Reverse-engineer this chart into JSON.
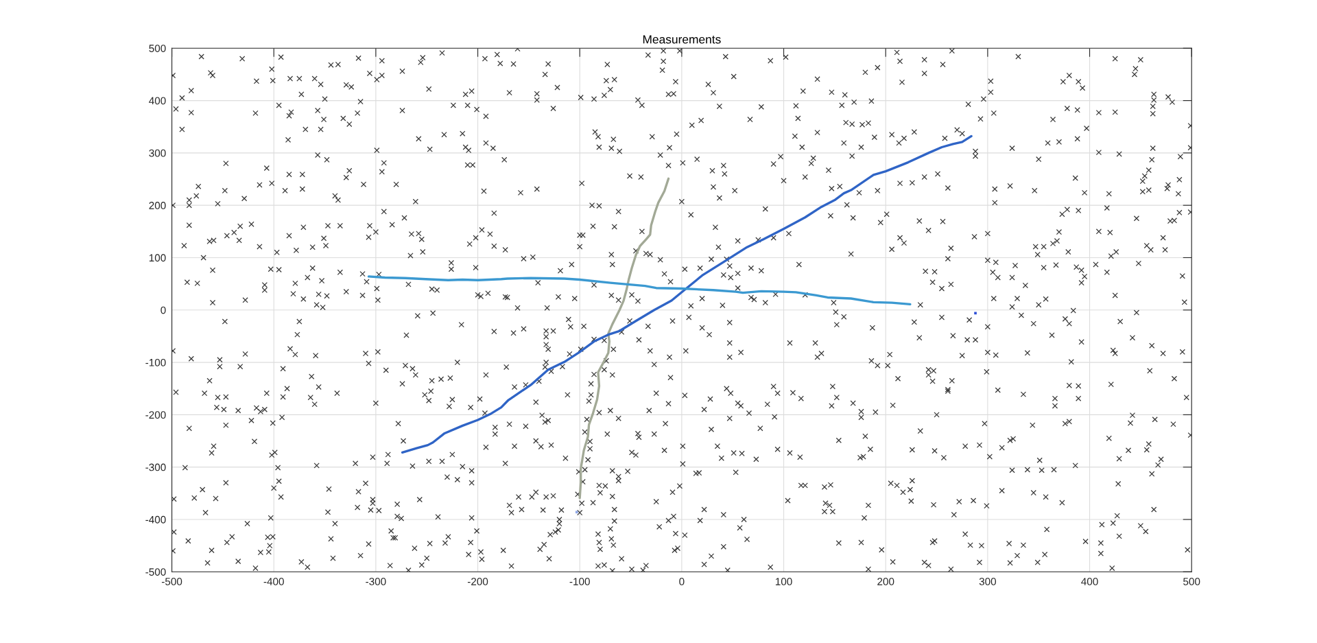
{
  "chart_data": {
    "type": "scatter",
    "title": "Measurements",
    "xlim": [
      -500,
      500
    ],
    "ylim": [
      -500,
      500
    ],
    "xticks": [
      -500,
      -400,
      -300,
      -200,
      -100,
      0,
      100,
      200,
      300,
      400,
      500
    ],
    "yticks": [
      -500,
      -400,
      -300,
      -200,
      -100,
      0,
      100,
      200,
      300,
      400,
      500
    ],
    "grid": true,
    "series": [
      {
        "color": "#383838",
        "marker": "cross",
        "x": [
          -499,
          -471,
          -431,
          -393,
          -402,
          -401,
          -462,
          -460,
          -490,
          -481,
          -496,
          -481,
          -490,
          -417,
          -418,
          -384,
          -375,
          -360,
          -354,
          -373,
          -344,
          -337,
          -317,
          -306,
          -299,
          -294,
          -294,
          -350,
          -385,
          -383,
          -395,
          -357,
          -351,
          -369,
          -354,
          -332,
          -326,
          -318,
          -315,
          -329,
          -324,
          -386,
          -274,
          -256,
          -254,
          -235,
          -248,
          -274,
          -258,
          -247,
          -233,
          -224,
          -212,
          -206,
          -210,
          -215,
          -212,
          -209,
          -210,
          -205,
          -201,
          -192,
          -193,
          -181,
          -178,
          -192,
          -185,
          -174,
          -299,
          -292,
          -294,
          -280,
          -329,
          -326,
          -312,
          -340,
          -337,
          -385,
          -372,
          -372,
          -389,
          -402,
          -407,
          -414,
          -357,
          -348,
          -447,
          -448,
          -474,
          -476,
          -483,
          -483,
          -499,
          -455,
          -429,
          -483,
          -488,
          -463,
          -459,
          -469,
          -446,
          -439,
          -433,
          -434,
          -422,
          -414,
          -485,
          -475,
          -460,
          -460,
          -428,
          -409,
          -409,
          -403,
          -395,
          -397,
          -385,
          -378,
          -371,
          -362,
          -351,
          -349,
          -347,
          -335,
          -379,
          -381,
          -371,
          -367,
          -362,
          -353,
          -356,
          -348,
          -358,
          -352,
          -335,
          -329,
          -313,
          -313,
          -309,
          -306,
          -307,
          -300,
          -292,
          -284,
          -272,
          -261,
          -265,
          -258,
          -255,
          -254,
          -266,
          -299,
          -298,
          -297,
          -245,
          -240,
          -226,
          -226,
          -268,
          -208,
          -202,
          -196,
          -188,
          -184,
          -194,
          -184,
          -202,
          -200,
          -197,
          -190,
          -173,
          -173,
          -161,
          -165,
          -131,
          -134,
          -122,
          -169,
          -142,
          -142,
          -126,
          -99,
          -86,
          -76,
          -70,
          -74,
          -66,
          -73,
          -33,
          -18,
          -18,
          -19,
          -2,
          -6,
          -13,
          -8,
          -43,
          -39,
          43,
          51,
          26,
          31,
          37,
          78,
          87,
          102,
          67,
          10,
          19,
          -5,
          -29,
          -12,
          -21,
          -13,
          1,
          15,
          30,
          41,
          42,
          31,
          52,
          37,
          0,
          9,
          33,
          82,
          90,
          97,
          100,
          121,
          127,
          129,
          144,
          112,
          114,
          111,
          118,
          133,
          133,
          119,
          147,
          160,
          157,
          161,
          159,
          147,
          155,
          162,
          146,
          105,
          75,
          90,
          55,
          36,
          29,
          44,
          47,
          68,
          78,
          115,
          166,
          3,
          18,
          41,
          55,
          48,
          -17,
          -21,
          -69,
          -68,
          -108,
          -119,
          -155,
          -146,
          -100,
          -100,
          -97,
          -87,
          -66,
          -62,
          -88,
          -81,
          -98,
          -51,
          -40,
          -142,
          -158,
          -81,
          -69,
          -61,
          -67,
          -85,
          -82,
          -39,
          -45,
          -31,
          -35,
          -161,
          -132,
          -121,
          -105,
          -69,
          -62,
          -43,
          -49,
          9,
          20,
          40,
          71,
          82,
          68,
          55,
          149,
          121,
          92,
          -11,
          -86,
          -141,
          -171,
          211,
          214,
          238,
          265,
          256,
          238,
          216,
          192,
          180,
          169,
          186,
          167,
          177,
          183,
          189,
          176,
          167,
          206,
          213,
          218,
          228,
          258,
          270,
          275,
          281,
          296,
          303,
          303,
          306,
          293,
          288,
          288,
          330,
          374,
          380,
          389,
          393,
          378,
          388,
          364,
          397,
          359,
          370,
          388,
          324,
          350,
          409,
          425,
          425,
          450,
          445,
          444,
          463,
          463,
          462,
          462,
          477,
          481,
          499,
          499,
          462,
          409,
          429,
          489,
          461,
          458,
          454,
          452,
          458,
          452,
          477,
          476,
          488,
          487,
          419,
          395,
          386,
          346,
          322,
          307,
          307,
          214,
          226,
          238,
          251,
          261,
          192,
          174,
          417,
          378,
          373,
          389,
          370,
          364,
          368,
          347,
          355,
          349,
          379,
          409,
          420,
          446,
          479,
          483,
          488,
          499,
          472,
          456,
          460,
          474,
          426,
          421,
          406,
          417,
          448,
          491,
          493,
          425,
          392,
          387,
          392,
          395,
          367,
          355,
          337,
          327,
          324,
          310,
          308,
          300,
          305,
          306,
          329,
          324,
          350,
          357,
          300,
          287,
          264,
          261,
          242,
          233,
          256,
          214,
          218,
          206,
          195,
          201,
          168,
          239,
          248,
          246,
          255,
          264,
          234,
          -448,
          -375,
          -377,
          -499,
          -481,
          -453,
          -453,
          -428,
          -433,
          -384,
          -379,
          -359,
          -391,
          -463,
          -496,
          -468,
          -455,
          -447,
          -456,
          -449,
          -435,
          -417,
          -413,
          -409,
          -407,
          -391,
          -387,
          -363,
          -356,
          -364,
          -360,
          -338,
          -483,
          -447,
          -422,
          -401,
          -392,
          -419,
          -459,
          -461,
          -402,
          -399,
          -396,
          -487,
          -358,
          -395,
          -400,
          -393,
          -447,
          -470,
          -478,
          -457,
          -498,
          -467,
          -498,
          -484,
          -499,
          -461,
          -446,
          -441,
          -465,
          -435,
          -426,
          -418,
          -413,
          -406,
          -401,
          -404,
          -405,
          -403,
          -373,
          -367,
          -347,
          -340,
          -344,
          -342,
          -346,
          -320,
          -317,
          -310,
          -318,
          -305,
          -303,
          -303,
          -297,
          -303,
          -310,
          -307,
          -298,
          -300,
          -290,
          -289,
          -288,
          -278,
          -273,
          -274,
          -271,
          -270,
          -264,
          -261,
          -259,
          -244,
          -216,
          -184,
          -220,
          -245,
          -236,
          -227,
          -252,
          -246,
          -248,
          -225,
          -228,
          -207,
          -192,
          -198,
          -279,
          -279,
          -275,
          -264,
          -248,
          -235,
          -225,
          -215,
          -206,
          -206,
          -230,
          -220,
          -257,
          -239,
          -206,
          -201,
          -207,
          -209,
          -197,
          -196,
          -175,
          -229,
          -232,
          -247,
          -250,
          -255,
          -262,
          -268,
          -286,
          -283,
          -285,
          -281,
          -307,
          -315,
          -192,
          -183,
          -183,
          -193,
          -172,
          -173,
          -165,
          -155,
          -133,
          -133,
          -133,
          -131,
          -126,
          -111,
          -109,
          -96,
          -99,
          -110,
          -133,
          -134,
          -128,
          -117,
          -164,
          -153,
          -140,
          -143,
          -112,
          -169,
          -153,
          -137,
          -134,
          -131,
          -143,
          -138,
          -128,
          -164,
          -114,
          -160,
          -147,
          -143,
          -133,
          -126,
          -169,
          -167,
          -157,
          -136,
          -118,
          -120,
          -120,
          -121,
          -124,
          -129,
          -135,
          -139,
          -130,
          -167,
          -87,
          -82,
          -81,
          -80,
          -82,
          -76,
          -68,
          -70,
          -69,
          -67,
          -66,
          -66,
          -68,
          -80,
          -81,
          -75,
          -68,
          -62,
          -62,
          -53,
          -59,
          -49,
          -38,
          -35,
          -22,
          -25,
          -13,
          -8,
          -6,
          -7,
          -4,
          3,
          -2,
          -9,
          1,
          1,
          -17,
          -27,
          -43,
          -42,
          -49,
          -45,
          -73,
          -62,
          -70,
          -68,
          -32,
          -16,
          -13,
          -25,
          -11,
          -27,
          -31,
          -42,
          -33,
          -12,
          -9,
          7,
          4,
          3,
          20,
          27,
          47,
          47,
          47,
          58,
          44,
          48,
          28,
          22,
          55,
          58,
          66,
          47,
          29,
          77,
          84,
          90,
          94,
          91,
          94,
          73,
          59,
          51,
          39,
          35,
          53,
          14,
          17,
          22,
          18,
          41,
          61,
          57,
          64,
          41,
          29,
          22,
          45,
          87,
          106,
          131,
          133,
          137,
          109,
          117,
          148,
          152,
          147,
          154,
          106,
          116,
          151,
          159,
          152,
          104,
          117,
          121,
          140,
          146,
          141,
          145,
          140,
          148,
          154,
          -86,
          -89,
          -89,
          -91,
          -81,
          -93,
          -95,
          -90,
          -90,
          -92,
          -95,
          -101,
          -97,
          -102,
          -98,
          -100,
          -74,
          -76,
          -67,
          -76,
          -86,
          -59,
          -51,
          187,
          228,
          255,
          233,
          266,
          282,
          280,
          288,
          300,
          275,
          300,
          308,
          333,
          345,
          339,
          363,
          376,
          380,
          392,
          384,
          382,
          430,
          446,
          442,
          461,
          472,
          491,
          423,
          425,
          204,
          186,
          192,
          202,
          212,
          242,
          247,
          242,
          246,
          265,
          261,
          261,
          299,
          310,
          335,
          366,
          366,
          380,
          389,
          389,
          421,
          459,
          483,
          495,
          168,
          176,
          190,
          176,
          207,
          250,
          234,
          180,
          185,
          175,
          178,
          226,
          248,
          257,
          278,
          292,
          297,
          302,
          314,
          322,
          325,
          344,
          351,
          376,
          380,
          324,
          339,
          353,
          365,
          386,
          419,
          429,
          438,
          442,
          440,
          464,
          482,
          499,
          458,
          456,
          470,
          467,
          461,
          428,
          463,
          427,
          412,
          423,
          429,
          450,
          455,
          411,
          411,
          396,
          496,
          422,
          205,
          211,
          217,
          224,
          226,
          225,
          183,
          179,
          247,
          272,
          286,
          299,
          267,
          314,
          345,
          357,
          373,
          358,
          278,
          283,
          294,
          321,
          335,
          329,
          356,
          349,
          322,
          292,
          246,
          248,
          196,
          176,
          207,
          238,
          242,
          264,
          183
        ],
        "values": [
          448,
          484,
          480,
          483,
          460,
          438,
          453,
          448,
          405,
          419,
          384,
          377,
          345,
          437,
          376,
          442,
          442,
          442,
          431,
          412,
          468,
          469,
          481,
          452,
          440,
          476,
          448,
          403,
          371,
          378,
          391,
          381,
          364,
          345,
          345,
          366,
          355,
          376,
          398,
          430,
          426,
          325,
          456,
          473,
          482,
          491,
          422,
          381,
          327,
          307,
          335,
          391,
          412,
          418,
          391,
          337,
          311,
          305,
          277,
          277,
          383,
          370,
          480,
          488,
          471,
          319,
          309,
          287,
          305,
          281,
          264,
          240,
          253,
          266,
          240,
          218,
          210,
          259,
          259,
          231,
          228,
          242,
          271,
          239,
          296,
          287,
          280,
          228,
          236,
          218,
          210,
          200,
          200,
          203,
          213,
          162,
          123,
          131,
          133,
          100,
          142,
          148,
          160,
          133,
          164,
          121,
          53,
          51,
          76,
          14,
          19,
          48,
          38,
          78,
          77,
          110,
          142,
          114,
          158,
          120,
          137,
          123,
          161,
          161,
          51,
          31,
          21,
          62,
          80,
          56,
          30,
          27,
          10,
          5,
          72,
          35,
          28,
          69,
          54,
          161,
          139,
          149,
          188,
          163,
          176,
          207,
          145,
          146,
          135,
          111,
          104,
          41,
          19,
          68,
          40,
          38,
          90,
          78,
          49,
          126,
          138,
          153,
          145,
          122,
          227,
          185,
          81,
          29,
          26,
          32,
          25,
          115,
          499,
          470,
          470,
          450,
          425,
          415,
          413,
          401,
          385,
          406,
          403,
          410,
          421,
          438,
          440,
          469,
          487,
          495,
          475,
          458,
          495,
          436,
          412,
          413,
          401,
          391,
          484,
          446,
          431,
          415,
          389,
          388,
          476,
          483,
          364,
          353,
          362,
          336,
          331,
          310,
          296,
          276,
          281,
          288,
          266,
          276,
          260,
          235,
          228,
          214,
          207,
          182,
          158,
          193,
          279,
          293,
          247,
          254,
          280,
          290,
          267,
          390,
          366,
          332,
          311,
          339,
          441,
          418,
          416,
          411,
          391,
          358,
          319,
          232,
          236,
          201,
          180,
          146,
          134,
          138,
          132,
          120,
          97,
          97,
          84,
          80,
          75,
          87,
          107,
          78,
          80,
          67,
          70,
          62,
          69,
          96,
          106,
          87,
          87,
          75,
          98,
          101,
          121,
          143,
          143,
          160,
          159,
          188,
          200,
          199,
          242,
          256,
          254,
          231,
          224,
          311,
          309,
          303,
          326,
          340,
          331,
          150,
          113,
          106,
          108,
          4,
          4,
          25,
          22,
          28,
          19,
          17,
          29,
          8,
          22,
          9,
          20,
          14,
          24,
          42,
          14,
          29,
          30,
          54,
          48,
          52,
          24,
          492,
          475,
          478,
          495,
          469,
          452,
          435,
          463,
          454,
          397,
          399,
          355,
          354,
          357,
          330,
          311,
          294,
          335,
          319,
          328,
          340,
          328,
          344,
          337,
          393,
          403,
          437,
          416,
          376,
          365,
          303,
          294,
          484,
          436,
          448,
          436,
          424,
          385,
          382,
          364,
          347,
          319,
          321,
          327,
          309,
          288,
          377,
          378,
          480,
          478,
          461,
          450,
          412,
          401,
          389,
          375,
          407,
          397,
          352,
          310,
          309,
          301,
          298,
          293,
          287,
          267,
          256,
          246,
          229,
          226,
          239,
          232,
          249,
          222,
          222,
          224,
          252,
          228,
          237,
          231,
          205,
          242,
          243,
          254,
          260,
          233,
          228,
          224,
          195,
          192,
          183,
          190,
          149,
          127,
          132,
          121,
          121,
          106,
          111,
          150,
          148,
          175,
          170,
          171,
          186,
          187,
          138,
          123,
          115,
          115,
          111,
          103,
          87,
          72,
          89,
          65,
          15,
          28,
          52,
          82,
          76,
          64,
          86,
          81,
          47,
          85,
          62,
          62,
          91,
          95,
          72,
          22,
          22,
          6,
          10,
          21,
          146,
          140,
          118,
          98,
          152,
          170,
          169,
          138,
          128,
          116,
          167,
          183,
          176,
          74,
          73,
          53,
          41,
          49,
          10,
          -22,
          -22,
          -47,
          -78,
          -93,
          -95,
          -108,
          -84,
          -108,
          -74,
          -85,
          -87,
          -112,
          -135,
          -157,
          -159,
          -167,
          -166,
          -186,
          -190,
          -192,
          -187,
          -194,
          -190,
          -159,
          -166,
          -150,
          -127,
          -147,
          -167,
          -180,
          -159,
          -226,
          -220,
          -211,
          -216,
          -205,
          -251,
          -260,
          -273,
          -277,
          -272,
          -301,
          -301,
          -297,
          -327,
          -340,
          -357,
          -330,
          -343,
          -359,
          -360,
          -361,
          -387,
          -424,
          -441,
          -460,
          -459,
          -444,
          -433,
          -483,
          -480,
          -408,
          -493,
          -463,
          -434,
          -433,
          -450,
          -462,
          -397,
          -481,
          -491,
          -386,
          -408,
          -437,
          -474,
          -342,
          -293,
          -347,
          -331,
          -377,
          -382,
          -362,
          -369,
          -383,
          -281,
          -83,
          -102,
          -80,
          -178,
          -115,
          -293,
          -276,
          -217,
          -250,
          -141,
          -106,
          -48,
          -112,
          -124,
          -11,
          -6,
          -28,
          -41,
          -100,
          -135,
          -132,
          -130,
          -162,
          -155,
          -173,
          -171,
          -184,
          -186,
          -124,
          -170,
          -371,
          -394,
          -398,
          -298,
          -289,
          -289,
          -276,
          -299,
          -307,
          -330,
          -319,
          -324,
          -362,
          -395,
          -397,
          -422,
          -444,
          -467,
          -462,
          -476,
          -459,
          -433,
          -445,
          -446,
          -474,
          -487,
          -455,
          -497,
          -488,
          -435,
          -422,
          -435,
          -447,
          -469,
          -262,
          -237,
          -224,
          -197,
          -109,
          -293,
          -44,
          -36,
          -40,
          -51,
          -66,
          -75,
          -40,
          -18,
          -32,
          -31,
          -75,
          -84,
          -100,
          -109,
          -117,
          -108,
          -147,
          -143,
          -136,
          -176,
          -162,
          -218,
          -222,
          -201,
          -214,
          -211,
          -250,
          -261,
          -258,
          -260,
          -283,
          -357,
          -357,
          -348,
          -357,
          -355,
          -373,
          -387,
          -381,
          -382,
          -382,
          -400,
          -408,
          -420,
          -424,
          -429,
          -448,
          -457,
          -475,
          -489,
          -368,
          -428,
          -444,
          -457,
          -489,
          -487,
          -498,
          -418,
          -437,
          -449,
          -403,
          -381,
          -356,
          -349,
          -335,
          -336,
          -307,
          -318,
          -326,
          -308,
          -475,
          -495,
          -497,
          -488,
          -414,
          -366,
          -402,
          -394,
          -427,
          -459,
          -455,
          -430,
          -336,
          -348,
          -294,
          -260,
          -268,
          -237,
          -236,
          -243,
          -272,
          -277,
          -237,
          -207,
          -192,
          -124,
          -192,
          -217,
          -179,
          -159,
          -129,
          -104,
          -78,
          -57,
          -31,
          -90,
          -21,
          -14,
          -78,
          -163,
          -34,
          -47,
          -24,
          -63,
          -90,
          -81,
          -150,
          -159,
          -170,
          -190,
          -178,
          -183,
          -197,
          -207,
          -228,
          -226,
          -180,
          -146,
          -159,
          -204,
          -266,
          -285,
          -274,
          -273,
          -283,
          -260,
          -310,
          -312,
          -311,
          -381,
          -402,
          -391,
          -400,
          -416,
          -438,
          -452,
          -470,
          -486,
          -497,
          -491,
          -63,
          -63,
          -90,
          -83,
          -158,
          -169,
          -146,
          -167,
          -183,
          -249,
          -273,
          -281,
          -4,
          -13,
          -28,
          -364,
          -335,
          -335,
          -338,
          -334,
          -369,
          -373,
          -385,
          -385,
          -445,
          -123,
          -141,
          -162,
          -174,
          -196,
          -209,
          -233,
          -251,
          -265,
          -286,
          -305,
          -309,
          -328,
          -352,
          -369,
          -387,
          -97,
          -114,
          -75,
          -58,
          -56,
          -42,
          -21,
          -34,
          -23,
          -14,
          -53,
          -49,
          -19,
          -57,
          -57,
          -32,
          -87,
          -81,
          -86,
          -10,
          -26,
          -82,
          -48,
          -17,
          -26,
          -61,
          -1,
          -99,
          -22,
          -5,
          -53,
          -68,
          -83,
          -80,
          -77,
          -83,
          -85,
          -97,
          -106,
          -106,
          -131,
          -114,
          -116,
          -124,
          -136,
          -135,
          -152,
          -155,
          -118,
          -153,
          -161,
          -169,
          -183,
          -144,
          -145,
          -169,
          -142,
          -116,
          -131,
          -167,
          -178,
          -194,
          -195,
          -205,
          -182,
          -200,
          -231,
          -241,
          -266,
          -282,
          -280,
          -267,
          -269,
          -282,
          -260,
          -258,
          -217,
          -280,
          -263,
          -249,
          -246,
          -220,
          -287,
          -217,
          -213,
          -306,
          -305,
          -306,
          -305,
          -297,
          -245,
          -284,
          -268,
          -201,
          -216,
          -209,
          -218,
          -239,
          -256,
          -267,
          -285,
          -296,
          -313,
          -332,
          -381,
          -393,
          -410,
          -407,
          -432,
          -412,
          -423,
          -445,
          -465,
          -442,
          -458,
          -493,
          -331,
          -335,
          -348,
          -343,
          -326,
          -365,
          -373,
          -397,
          -372,
          -366,
          -364,
          -374,
          -391,
          -345,
          -349,
          -357,
          -368,
          -419,
          -428,
          -449,
          -450,
          -446,
          -449,
          -469,
          -467,
          -482,
          -483,
          -482,
          -444,
          -441,
          -458,
          -444,
          -481,
          -482,
          -488,
          -495,
          -495
        ]
      },
      {
        "type": "line",
        "color": "#a2a996",
        "line_style": "solid",
        "x": [
          -100,
          -99,
          -99,
          -96,
          -92,
          -91,
          -87,
          -83,
          -81,
          -82,
          -77,
          -72,
          -71,
          -72,
          -68,
          -61,
          -57,
          -54,
          -52,
          -49,
          -45,
          -41,
          -35,
          -31,
          -30,
          -26,
          -23,
          -17,
          -13
        ],
        "values": [
          -359,
          -329,
          -303,
          -268,
          -242,
          -219,
          -197,
          -171,
          -145,
          -119,
          -101,
          -82,
          -60,
          -45,
          -27,
          0,
          18,
          40,
          58,
          80,
          105,
          122,
          135,
          144,
          162,
          188,
          205,
          227,
          251
        ]
      },
      {
        "type": "line",
        "color": "#2f64c6",
        "line_style": "solid",
        "x": [
          -274,
          -260,
          -249,
          -244,
          -233,
          -215,
          -200,
          -188,
          -177,
          -170,
          -148,
          -131,
          -115,
          -100,
          -86,
          -72,
          -61,
          -45,
          -27,
          -10,
          0,
          20,
          42,
          64,
          80,
          100,
          121,
          137,
          150,
          159,
          166,
          188,
          200,
          222,
          242,
          255,
          266,
          275,
          284
        ],
        "values": [
          -272,
          -264,
          -258,
          -253,
          -236,
          -221,
          -210,
          -199,
          -186,
          -172,
          -143,
          -114,
          -99,
          -80,
          -60,
          -47,
          -40,
          -21,
          0,
          18,
          34,
          66,
          93,
          120,
          135,
          155,
          177,
          197,
          210,
          223,
          229,
          258,
          265,
          282,
          300,
          311,
          317,
          321,
          332
        ]
      },
      {
        "type": "line",
        "color": "#3b99d1",
        "line_style": "solid",
        "x": [
          -307,
          -291,
          -271,
          -251,
          -229,
          -215,
          -200,
          -177,
          -171,
          -148,
          -115,
          -100,
          -70,
          -36,
          -25,
          0,
          31,
          53,
          60,
          78,
          100,
          112,
          132,
          143,
          166,
          188,
          206,
          224
        ],
        "values": [
          64,
          62,
          61,
          59,
          57,
          58,
          57,
          59,
          60,
          61,
          60,
          58,
          52,
          46,
          42,
          41,
          38,
          35,
          33,
          36,
          35,
          34,
          28,
          24,
          22,
          15,
          14,
          11
        ]
      },
      {
        "type": "scatter",
        "color": "#2e4fd6",
        "marker": "square",
        "x": [
          288
        ],
        "values": [
          -6
        ]
      },
      {
        "type": "scatter",
        "color": "#8fa8e8",
        "marker": "square",
        "x": [
          -103
        ],
        "values": [
          -386
        ]
      }
    ]
  }
}
